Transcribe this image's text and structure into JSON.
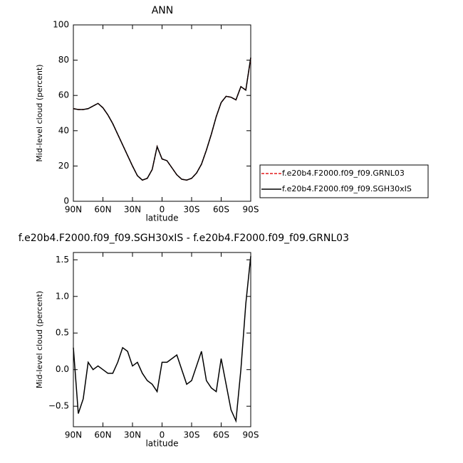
{
  "chart_data": [
    {
      "type": "line",
      "title": "ANN",
      "ylabel": "Mid-level cloud (percent)",
      "xlabel": "latitude",
      "x": [
        90,
        85,
        80,
        75,
        70,
        65,
        60,
        55,
        50,
        45,
        40,
        35,
        30,
        25,
        20,
        15,
        10,
        5,
        0,
        -5,
        -10,
        -15,
        -20,
        -25,
        -30,
        -35,
        -40,
        -45,
        -50,
        -55,
        -60,
        -65,
        -70,
        -75,
        -80,
        -85,
        -90
      ],
      "xlim": [
        90,
        -90
      ],
      "xticks": [
        {
          "value": 90,
          "label": "90N"
        },
        {
          "value": 60,
          "label": "60N"
        },
        {
          "value": 30,
          "label": "30N"
        },
        0,
        {
          "value": -30,
          "label": "30S"
        },
        {
          "value": -60,
          "label": "60S"
        },
        {
          "value": -90,
          "label": "90S"
        }
      ],
      "ylim": [
        0,
        100
      ],
      "yticks": [
        0,
        20,
        40,
        60,
        80,
        100
      ],
      "series": [
        {
          "name": "f.e20b4.F2000.f09_f09.GRNL03",
          "color": "#e41a1c",
          "linestyle": "dashed",
          "values": [
            52.5,
            52,
            52,
            52.5,
            54,
            55.5,
            53,
            49,
            44,
            38,
            32,
            26,
            20,
            14.5,
            12,
            13,
            18,
            31,
            24,
            23,
            19,
            15,
            12.5,
            12,
            13,
            16,
            21,
            29,
            38,
            48,
            56,
            59.5,
            59,
            57.5,
            65,
            63,
            81
          ]
        },
        {
          "name": "f.e20b4.F2000.f09_f09.SGH30xIS",
          "color": "#000000",
          "linestyle": "solid",
          "values": [
            52.5,
            52,
            52,
            52.5,
            54,
            55.5,
            53,
            49,
            44,
            38,
            32,
            26,
            20,
            14.5,
            12,
            13,
            18,
            31,
            24,
            23,
            19,
            15,
            12.5,
            12,
            13,
            16,
            21,
            29,
            38,
            48,
            56,
            59.5,
            59,
            57.5,
            65,
            63,
            81.5
          ]
        }
      ]
    },
    {
      "type": "line",
      "title": "f.e20b4.F2000.f09_f09.SGH30xIS - f.e20b4.F2000.f09_f09.GRNL03",
      "ylabel": "Mid-level cloud (percent)",
      "xlabel": "latitude",
      "x": [
        90,
        85,
        80,
        75,
        70,
        65,
        60,
        55,
        50,
        45,
        40,
        35,
        30,
        25,
        20,
        15,
        10,
        5,
        0,
        -5,
        -10,
        -15,
        -20,
        -25,
        -30,
        -35,
        -40,
        -45,
        -50,
        -55,
        -60,
        -65,
        -70,
        -75,
        -80,
        -85,
        -90
      ],
      "xlim": [
        90,
        -90
      ],
      "xticks": [
        {
          "value": 90,
          "label": "90N"
        },
        {
          "value": 60,
          "label": "60N"
        },
        {
          "value": 30,
          "label": "30N"
        },
        0,
        {
          "value": -30,
          "label": "30S"
        },
        {
          "value": -60,
          "label": "60S"
        },
        {
          "value": -90,
          "label": "90S"
        }
      ],
      "ylim": [
        -0.78,
        1.6
      ],
      "yticks": [
        {
          "value": -0.5,
          "label": "−0.5"
        },
        {
          "value": 0,
          "label": "0.0"
        },
        0.5,
        {
          "value": 1,
          "label": "1.0"
        },
        1.5
      ],
      "series": [
        {
          "color": "#000000",
          "linestyle": "solid",
          "values": [
            0.3,
            -0.6,
            -0.4,
            0.1,
            0.0,
            0.05,
            0.0,
            -0.05,
            -0.05,
            0.1,
            0.3,
            0.25,
            0.05,
            0.1,
            -0.05,
            -0.15,
            -0.2,
            -0.3,
            0.1,
            0.1,
            0.15,
            0.2,
            0.0,
            -0.2,
            -0.15,
            0.05,
            0.25,
            -0.15,
            -0.25,
            -0.3,
            0.15,
            -0.2,
            -0.55,
            -0.7,
            0.0,
            0.9,
            1.55
          ]
        }
      ]
    }
  ]
}
